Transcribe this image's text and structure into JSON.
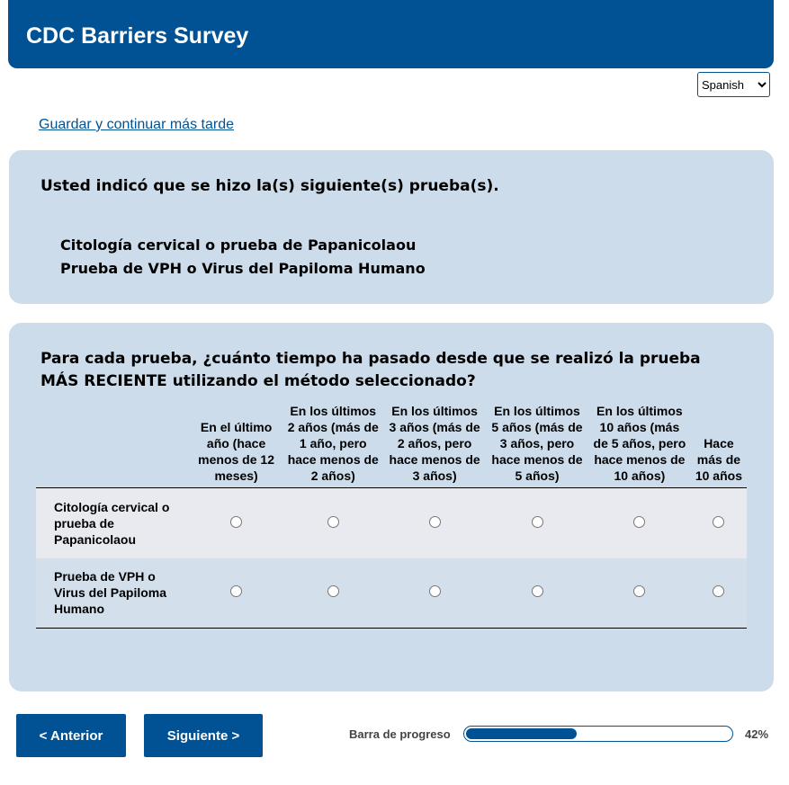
{
  "header": {
    "title": "CDC Barriers Survey"
  },
  "language": {
    "selected": "Spanish"
  },
  "save_link": "Guardar y continuar más tarde",
  "summary": {
    "question": "Usted indicó que se hizo la(s) siguiente(s) prueba(s).",
    "tests": [
      "Citología cervical o prueba de Papanicolaou",
      "Prueba de VPH o Virus del Papiloma Humano"
    ]
  },
  "matrix": {
    "question": "Para cada prueba, ¿cuánto tiempo ha pasado desde que se realizó la prueba MÁS RECIENTE utilizando el método seleccionado?",
    "columns": [
      "En el último año (hace menos de 12 meses)",
      "En los últimos 2 años (más de 1 año, pero hace menos de 2 años)",
      "En los últimos 3 años (más de 2 años, pero hace menos de 3 años)",
      "En los últimos 5 años (más de 3 años, pero hace menos de 5 años)",
      "En los últimos 10 años (más de 5 años, pero hace menos de 10 años)",
      "Hace más de 10 años"
    ],
    "rows": [
      "Citología cervical o prueba de Papanicolaou",
      "Prueba de VPH o Virus del Papiloma Humano"
    ]
  },
  "nav": {
    "prev": "< Anterior",
    "next": "Siguiente >"
  },
  "progress": {
    "label": "Barra de progreso",
    "value": 42,
    "text": "42%"
  },
  "colors": {
    "brand": "#005295",
    "panel": "#cddcea"
  }
}
